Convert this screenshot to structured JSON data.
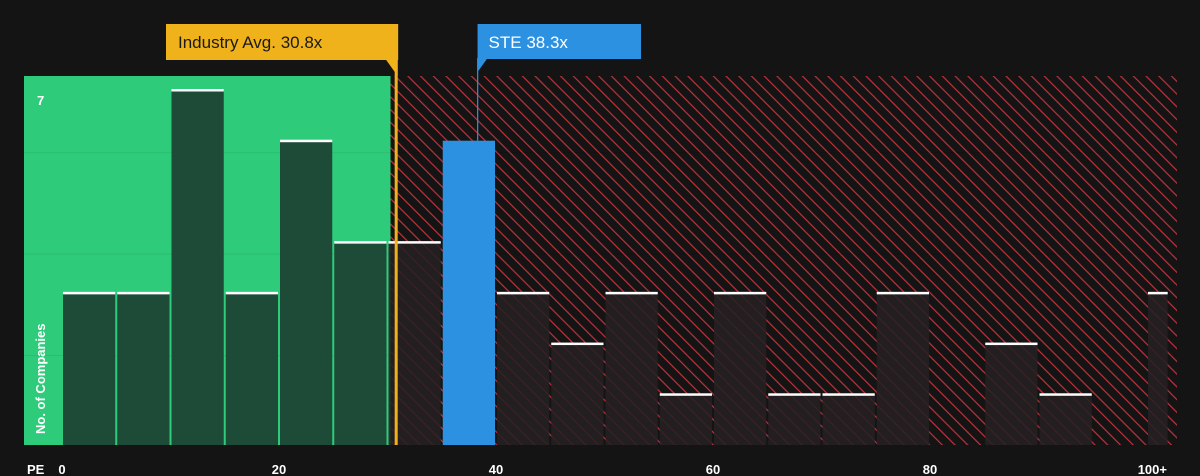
{
  "chart_data": {
    "type": "bar",
    "xlabel": "PE",
    "ylabel": "No. of Companies",
    "x_tick_labels": [
      "0",
      "20",
      "40",
      "60",
      "80",
      "100+"
    ],
    "x_tick_values": [
      0,
      20,
      40,
      60,
      80,
      100
    ],
    "y_tick_labels": [
      "7"
    ],
    "y_tick_values": [
      7
    ],
    "ylim": [
      0,
      7
    ],
    "xlim": [
      0,
      102
    ],
    "bin_width": 5,
    "bins": [
      {
        "x0": 0,
        "x1": 5,
        "value": 3
      },
      {
        "x0": 5,
        "x1": 10,
        "value": 3
      },
      {
        "x0": 10,
        "x1": 15,
        "value": 7
      },
      {
        "x0": 15,
        "x1": 20,
        "value": 3
      },
      {
        "x0": 20,
        "x1": 25,
        "value": 6
      },
      {
        "x0": 25,
        "x1": 30,
        "value": 4
      },
      {
        "x0": 30,
        "x1": 35,
        "value": 4
      },
      {
        "x0": 35,
        "x1": 40,
        "value": 6,
        "highlight": true
      },
      {
        "x0": 40,
        "x1": 45,
        "value": 3
      },
      {
        "x0": 45,
        "x1": 50,
        "value": 2
      },
      {
        "x0": 50,
        "x1": 55,
        "value": 3
      },
      {
        "x0": 55,
        "x1": 60,
        "value": 1
      },
      {
        "x0": 60,
        "x1": 65,
        "value": 3
      },
      {
        "x0": 65,
        "x1": 70,
        "value": 1
      },
      {
        "x0": 70,
        "x1": 75,
        "value": 1
      },
      {
        "x0": 75,
        "x1": 80,
        "value": 3
      },
      {
        "x0": 80,
        "x1": 85,
        "value": 0
      },
      {
        "x0": 85,
        "x1": 90,
        "value": 2
      },
      {
        "x0": 90,
        "x1": 95,
        "value": 1
      },
      {
        "x0": 95,
        "x1": 100,
        "value": 0
      },
      {
        "x0": 100,
        "x1": 102,
        "value": 3
      }
    ],
    "fair_zone_max": 30,
    "annotations": [
      {
        "label": "Industry Avg. 30.8x",
        "x": 30.8
      },
      {
        "label": "STE 38.3x",
        "x": 38.3
      }
    ],
    "colors": {
      "background": "#141414",
      "fair_zone": "#2ecc7a",
      "bar_fair": "#1e4a38",
      "bar_over": "#252022",
      "hatch": "#c2313c",
      "highlight": "#2b91e0",
      "industry_line": "#f0b21a",
      "bar_cap": "#ffffff"
    }
  }
}
